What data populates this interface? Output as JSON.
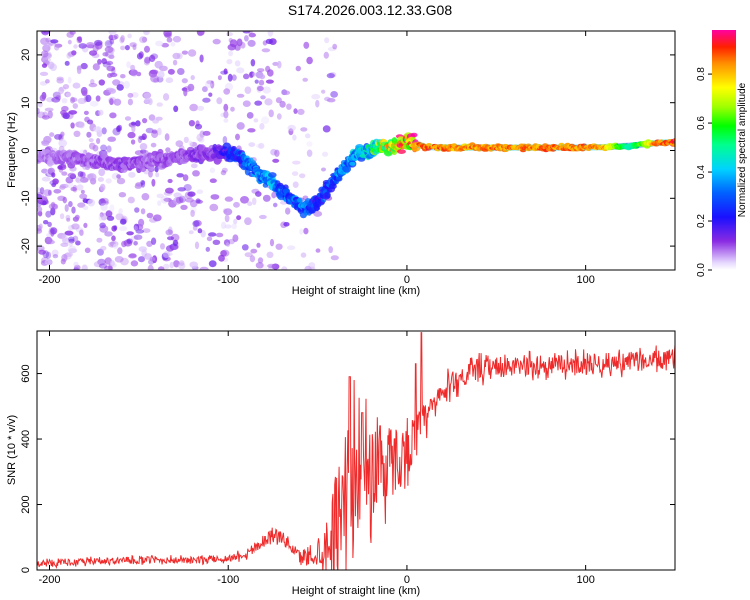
{
  "figure_title": "S174.2026.003.12.33.G08",
  "colorbar": {
    "label": "Normalized spectral amplitude",
    "ticks": [
      "0.0",
      "0.2",
      "0.4",
      "0.6",
      "0.8"
    ],
    "tick_values": [
      0.0,
      0.2,
      0.4,
      0.6,
      0.8
    ],
    "range": [
      0,
      0.98
    ]
  },
  "chart_data": [
    {
      "type": "heatmap",
      "title": "",
      "xlabel": "Height of straight line (km)",
      "ylabel": "Frequency (Hz)",
      "xlim": [
        -207,
        150
      ],
      "ylim": [
        -25,
        25
      ],
      "xticks": [
        -200,
        -100,
        0,
        100
      ],
      "xtick_labels": [
        "-200",
        "-100",
        "0",
        "100"
      ],
      "yticks": [
        -20,
        -10,
        0,
        10,
        20
      ],
      "ytick_labels": [
        "-20",
        "-10",
        "0",
        "10",
        "20"
      ],
      "ridge": {
        "description": "dominant spectral line (frequency vs height) with normalized amplitude",
        "x": [
          -207,
          -180,
          -160,
          -140,
          -120,
          -105,
          -95,
          -85,
          -75,
          -65,
          -58,
          -50,
          -45,
          -38,
          -30,
          -22,
          -15,
          -8,
          0,
          10,
          30,
          60,
          90,
          110,
          125,
          140,
          150
        ],
        "y": [
          -1,
          -2,
          -3,
          -2,
          -1,
          -0.5,
          -1,
          -4,
          -7,
          -10,
          -12,
          -11,
          -8,
          -5,
          -1,
          0,
          1,
          0.5,
          2,
          0.7,
          0.6,
          0.6,
          0.6,
          0.7,
          1.0,
          1.6,
          1.8
        ],
        "amplitude": [
          0.08,
          0.1,
          0.12,
          0.1,
          0.12,
          0.15,
          0.3,
          0.35,
          0.4,
          0.3,
          0.35,
          0.25,
          0.3,
          0.35,
          0.4,
          0.45,
          0.7,
          0.8,
          0.9,
          0.95,
          0.92,
          0.93,
          0.94,
          0.92,
          0.5,
          0.95,
          0.98
        ]
      },
      "noise_region": {
        "x_range": [
          -207,
          -40
        ],
        "y_range": [
          -25,
          25
        ],
        "typical_amplitude": 0.08
      }
    },
    {
      "type": "line",
      "title": "",
      "xlabel": "Height of straight line (km)",
      "ylabel": "SNR (10 * v/v)",
      "xlim": [
        -207,
        150
      ],
      "ylim": [
        0,
        730
      ],
      "xticks": [
        -200,
        -100,
        0,
        100
      ],
      "xtick_labels": [
        "-200",
        "-100",
        "0",
        "100"
      ],
      "yticks": [
        0,
        200,
        400,
        600
      ],
      "ytick_labels": [
        "0",
        "200",
        "400",
        "600"
      ],
      "color": "#ee2a2a",
      "series": [
        {
          "name": "SNR",
          "x": [
            -207,
            -180,
            -150,
            -120,
            -100,
            -90,
            -80,
            -75,
            -70,
            -65,
            -60,
            -50,
            -45,
            -40,
            -35,
            -30,
            -25,
            -20,
            -15,
            -10,
            -5,
            0,
            5,
            8,
            10,
            15,
            20,
            25,
            30,
            40,
            50,
            60,
            80,
            100,
            120,
            140,
            150
          ],
          "y": [
            20,
            25,
            30,
            30,
            35,
            50,
            90,
            110,
            100,
            70,
            40,
            50,
            80,
            150,
            250,
            300,
            280,
            300,
            320,
            330,
            340,
            360,
            420,
            440,
            460,
            500,
            540,
            570,
            590,
            610,
            615,
            620,
            625,
            630,
            635,
            640,
            645
          ],
          "noise_amplitude": [
            10,
            10,
            10,
            10,
            10,
            15,
            20,
            20,
            20,
            15,
            20,
            40,
            80,
            150,
            200,
            180,
            150,
            150,
            150,
            120,
            100,
            80,
            60,
            60,
            50,
            40,
            40,
            35,
            35,
            35,
            30,
            30,
            30,
            30,
            30,
            30,
            30
          ],
          "spikes": [
            {
              "x": -32,
              "y": 590
            },
            {
              "x": -25,
              "y": 480
            },
            {
              "x": -15,
              "y": 440
            },
            {
              "x": 8,
              "y": 725
            },
            {
              "x": 5,
              "y": 630
            }
          ]
        }
      ]
    }
  ]
}
